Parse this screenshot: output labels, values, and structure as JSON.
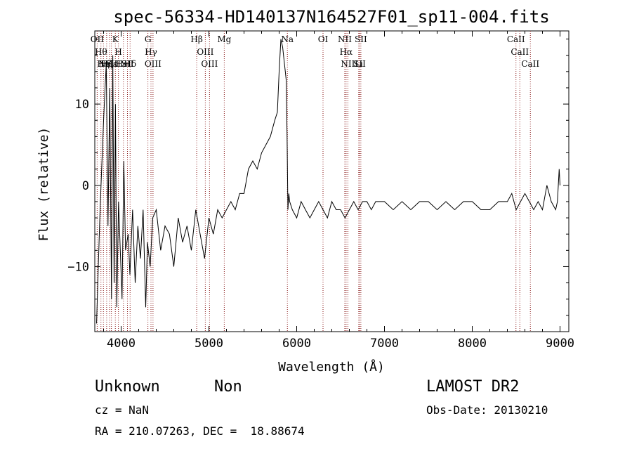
{
  "title": "spec-56334-HD140137N164527F01_sp11-004.fits",
  "footer": {
    "class": "Unknown",
    "subclass": "Non",
    "survey": "LAMOST DR2",
    "cz": "cz = NaN",
    "obs_date": "Obs-Date: 20130210",
    "radec": "RA = 210.07263, DEC =  18.88674"
  },
  "colors": {
    "spectrum": "#000000",
    "lines": "#8b1a1a",
    "axes": "#000000"
  },
  "chart_data": {
    "type": "line",
    "title": "spec-56334-HD140137N164527F01_sp11-004.fits",
    "xlabel": "Wavelength (Å)",
    "ylabel": "Flux (relative)",
    "xlim": [
      3700,
      9100
    ],
    "ylim": [
      -18,
      19
    ],
    "xticks": [
      4000,
      5000,
      6000,
      7000,
      8000,
      9000
    ],
    "yticks": [
      -10,
      0,
      10
    ],
    "xtick_labels": [
      "4000",
      "5000",
      "6000",
      "7000",
      "8000",
      "9000"
    ],
    "ytick_labels": [
      "−10",
      "0",
      "10"
    ],
    "series": [
      {
        "x": [
          3720,
          3760,
          3800,
          3830,
          3850,
          3870,
          3890,
          3905,
          3920,
          3935,
          3950,
          3970,
          3990,
          4010,
          4030,
          4050,
          4080,
          4100,
          4130,
          4160,
          4190,
          4220,
          4250,
          4280,
          4300,
          4330,
          4360,
          4400,
          4450,
          4500,
          4550,
          4600,
          4650,
          4700,
          4750,
          4800,
          4850,
          4900,
          4950,
          5000,
          5050,
          5100,
          5150,
          5200,
          5250,
          5300,
          5350,
          5400,
          5450,
          5500,
          5550,
          5600,
          5650,
          5700,
          5750,
          5780,
          5800,
          5820,
          5840,
          5860,
          5870,
          5880,
          5890,
          5900,
          5910,
          5920,
          5950,
          6000,
          6050,
          6100,
          6150,
          6200,
          6250,
          6300,
          6350,
          6400,
          6450,
          6500,
          6550,
          6600,
          6650,
          6700,
          6750,
          6800,
          6850,
          6900,
          6950,
          7000,
          7100,
          7200,
          7300,
          7400,
          7500,
          7600,
          7700,
          7800,
          7900,
          8000,
          8100,
          8200,
          8300,
          8400,
          8450,
          8500,
          8550,
          8600,
          8650,
          8700,
          8750,
          8800,
          8850,
          8900,
          8950,
          8970,
          8990,
          9000
        ],
        "y": [
          -17,
          -3,
          8,
          15,
          -5,
          12,
          -14,
          16,
          -12,
          10,
          -15,
          -2,
          -8,
          -14,
          3,
          -8,
          -6,
          -11,
          -3,
          -12,
          -5,
          -9,
          -3,
          -15,
          -7,
          -10,
          -4,
          -3,
          -8,
          -5,
          -6,
          -10,
          -4,
          -7,
          -5,
          -8,
          -3,
          -6,
          -9,
          -4,
          -6,
          -3,
          -4,
          -3,
          -2,
          -3,
          -1,
          -1,
          2,
          3,
          2,
          4,
          5,
          6,
          8,
          9,
          14,
          18,
          17,
          15,
          14,
          13,
          6,
          -3,
          -1,
          -2,
          -3,
          -4,
          -2,
          -3,
          -4,
          -3,
          -2,
          -3,
          -4,
          -2,
          -3,
          -3,
          -4,
          -3,
          -2,
          -3,
          -2,
          -2,
          -3,
          -2,
          -2,
          -2,
          -3,
          -2,
          -3,
          -2,
          -2,
          -3,
          -2,
          -3,
          -2,
          -2,
          -3,
          -3,
          -2,
          -2,
          -1,
          -3,
          -2,
          -1,
          -2,
          -3,
          -2,
          -3,
          0,
          -2,
          -3,
          -2,
          2,
          0
        ]
      }
    ],
    "line_markers": [
      {
        "x": 3727,
        "label": "OII"
      },
      {
        "x": 3770,
        "label": "Hθ"
      },
      {
        "x": 3798,
        "label": "Hη"
      },
      {
        "x": 3835,
        "label": "Hζ"
      },
      {
        "x": 3869,
        "label": "NeIII"
      },
      {
        "x": 3889,
        "label": "Hε"
      },
      {
        "x": 3934,
        "label": "K"
      },
      {
        "x": 3969,
        "label": "H"
      },
      {
        "x": 4026,
        "label": "HeI"
      },
      {
        "x": 4072,
        "label": "SII"
      },
      {
        "x": 4102,
        "label": "Hδ"
      },
      {
        "x": 4305,
        "label": "G"
      },
      {
        "x": 4340,
        "label": "Hγ"
      },
      {
        "x": 4363,
        "label": "OIII"
      },
      {
        "x": 4861,
        "label": "Hβ"
      },
      {
        "x": 4959,
        "label": "OIII"
      },
      {
        "x": 5007,
        "label": "OIII"
      },
      {
        "x": 5175,
        "label": "Mg"
      },
      {
        "x": 5894,
        "label": "Na"
      },
      {
        "x": 6300,
        "label": "OI"
      },
      {
        "x": 6548,
        "label": "NII"
      },
      {
        "x": 6563,
        "label": "Hα"
      },
      {
        "x": 6583,
        "label": "NII"
      },
      {
        "x": 6707,
        "label": "Li"
      },
      {
        "x": 6716,
        "label": "SII"
      },
      {
        "x": 6731,
        "label": "SII"
      },
      {
        "x": 8498,
        "label": "CaII"
      },
      {
        "x": 8542,
        "label": "CaII"
      },
      {
        "x": 8662,
        "label": "CaII"
      }
    ]
  }
}
